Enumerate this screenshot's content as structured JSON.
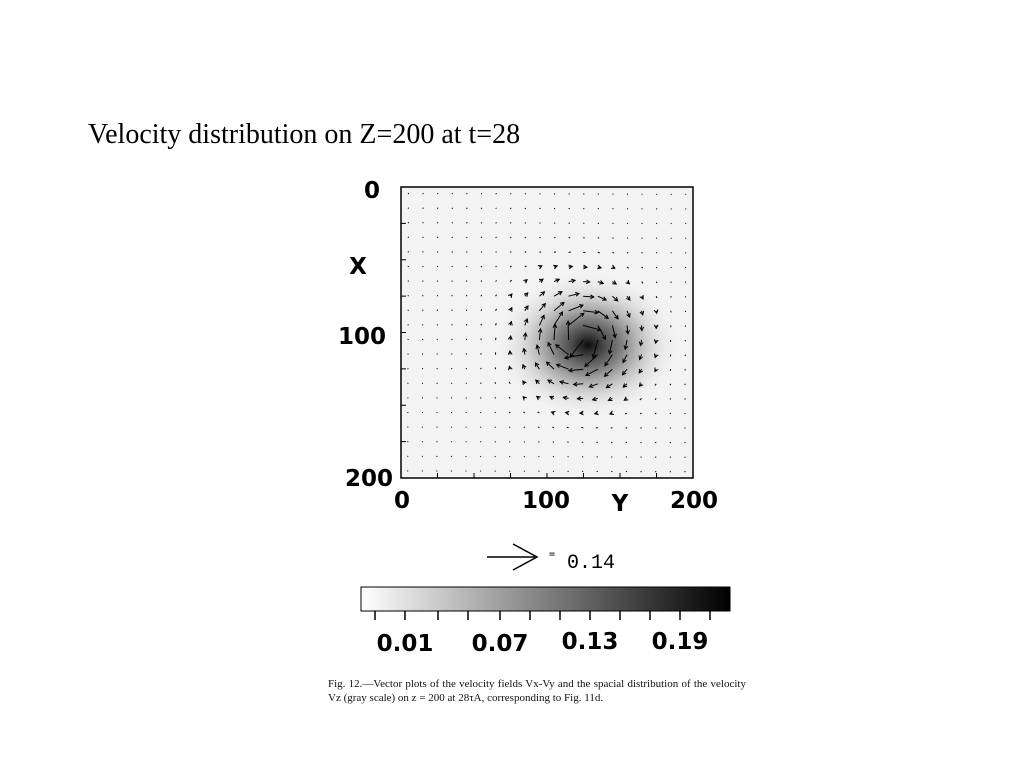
{
  "title": "Velocity distribution on Z=200 at t=28",
  "figure": {
    "x_axis": {
      "label": "X",
      "ticks": [
        "0",
        "100",
        "200"
      ]
    },
    "y_axis": {
      "label": "Y",
      "ticks": [
        "0",
        "100",
        "200"
      ]
    },
    "reference_arrow": {
      "equals": "=",
      "value": "0.14"
    },
    "colorbar": {
      "ticks": [
        "0.01",
        "0.07",
        "0.13",
        "0.19"
      ]
    },
    "caption": "Fig. 12.—Vector plots of the velocity fields Vx-Vy and the spacial distribution of the velocity Vz (gray scale) on z = 200 at 28τA, corresponding to Fig. 11d."
  }
}
